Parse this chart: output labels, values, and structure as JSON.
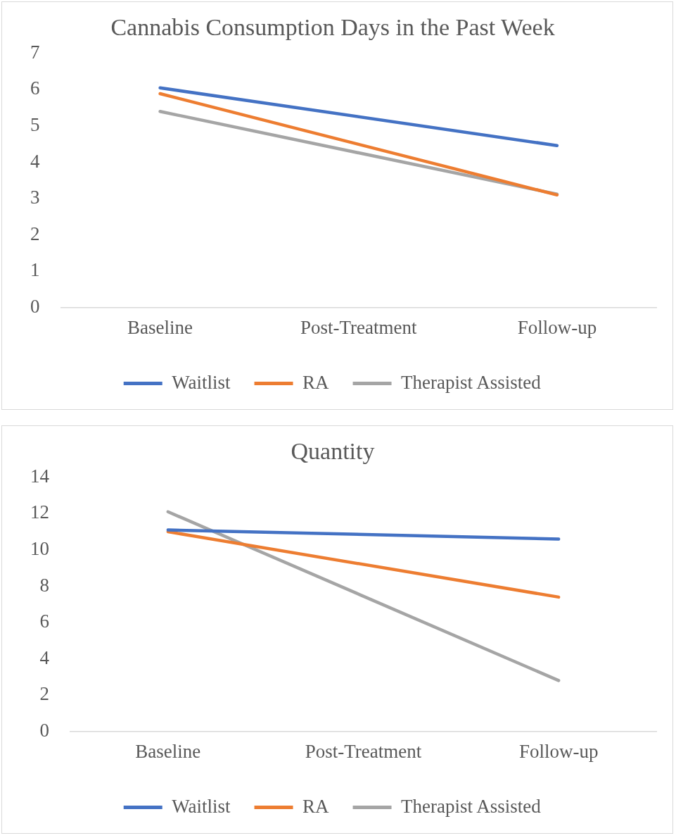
{
  "chart_data": [
    {
      "type": "line",
      "title": "Cannabis Consumption Days in the Past Week",
      "categories": [
        "Baseline",
        "Post-Treatment",
        "Follow-up"
      ],
      "series": [
        {
          "name": "Waitlist",
          "color": "#4472c4",
          "values": [
            6.05,
            null,
            4.46
          ]
        },
        {
          "name": "RA",
          "color": "#ed7d31",
          "values": [
            5.89,
            null,
            3.1
          ]
        },
        {
          "name": "Therapist Assisted",
          "color": "#a5a5a5",
          "values": [
            5.4,
            null,
            3.12
          ]
        }
      ],
      "ylim": [
        0,
        7
      ],
      "yticks": [
        0,
        1,
        2,
        3,
        4,
        5,
        6,
        7
      ],
      "grid": false,
      "legend": "bottom",
      "marker": "none"
    },
    {
      "type": "line",
      "title": "Quantity",
      "categories": [
        "Baseline",
        "Post-Treatment",
        "Follow-up"
      ],
      "series": [
        {
          "name": "Waitlist",
          "color": "#4472c4",
          "values": [
            11.1,
            null,
            10.6
          ]
        },
        {
          "name": "RA",
          "color": "#ed7d31",
          "values": [
            11.0,
            null,
            7.4
          ]
        },
        {
          "name": "Therapist Assisted",
          "color": "#a5a5a5",
          "values": [
            12.1,
            null,
            2.8
          ]
        }
      ],
      "ylim": [
        0,
        14
      ],
      "yticks": [
        0,
        2,
        4,
        6,
        8,
        10,
        12,
        14
      ],
      "grid": false,
      "legend": "bottom",
      "marker": "none"
    }
  ]
}
